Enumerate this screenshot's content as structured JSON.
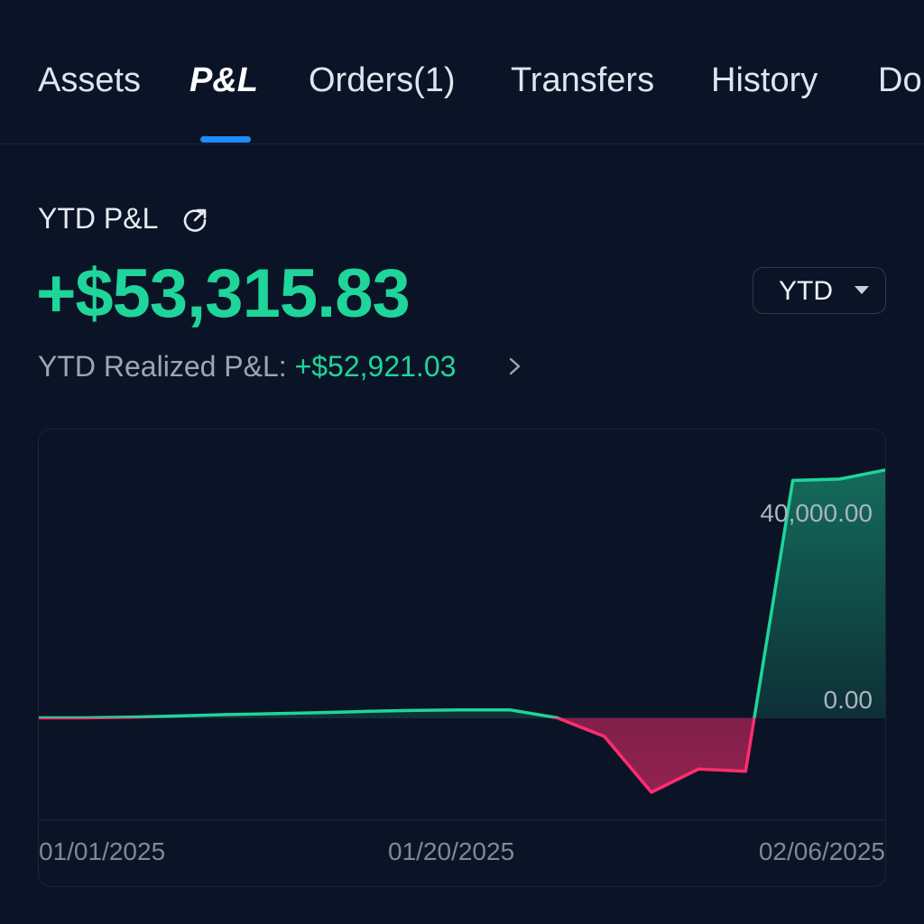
{
  "tabs": [
    {
      "label": "Assets",
      "active": false
    },
    {
      "label": "P&L",
      "active": true
    },
    {
      "label": "Orders(1)",
      "active": false
    },
    {
      "label": "Transfers",
      "active": false
    },
    {
      "label": "History",
      "active": false
    },
    {
      "label": "Do",
      "active": false
    }
  ],
  "summary": {
    "title": "YTD P&L",
    "total_pnl": "+$53,315.83",
    "realized_label": "YTD Realized P&L:",
    "realized_value": "+$52,921.03",
    "period_select": "YTD"
  },
  "colors": {
    "accent": "#1e8cff",
    "positive": "#1fd59a",
    "negative": "#ff2d6f",
    "background": "#0b1426"
  },
  "icons": {
    "share": "share-icon",
    "caret": "caret-down-icon",
    "chevron": "chevron-right-icon"
  },
  "chart_data": {
    "type": "area",
    "x": [
      "01/01/2025",
      "01/03/2025",
      "01/05/2025",
      "01/07/2025",
      "01/09/2025",
      "01/11/2025",
      "01/13/2025",
      "01/15/2025",
      "01/17/2025",
      "01/19/2025",
      "01/21/2025",
      "01/23/2025",
      "01/25/2025",
      "01/27/2025",
      "01/29/2025",
      "01/31/2025",
      "02/02/2025",
      "02/04/2025",
      "02/06/2025"
    ],
    "values": [
      0,
      0,
      150,
      400,
      700,
      900,
      1100,
      1400,
      1600,
      1700,
      1700,
      0,
      -4000,
      -16000,
      -11000,
      -11500,
      51000,
      51300,
      53316
    ],
    "x_ticks": [
      "01/01/2025",
      "01/20/2025",
      "02/06/2025"
    ],
    "y_ticks": [
      {
        "value": 40000,
        "label": "40,000.00"
      },
      {
        "value": 0,
        "label": "0.00"
      }
    ],
    "ylim": [
      -22000,
      60000
    ],
    "grid": false,
    "positive_color": "#1fd59a",
    "negative_color": "#ff2d6f"
  }
}
